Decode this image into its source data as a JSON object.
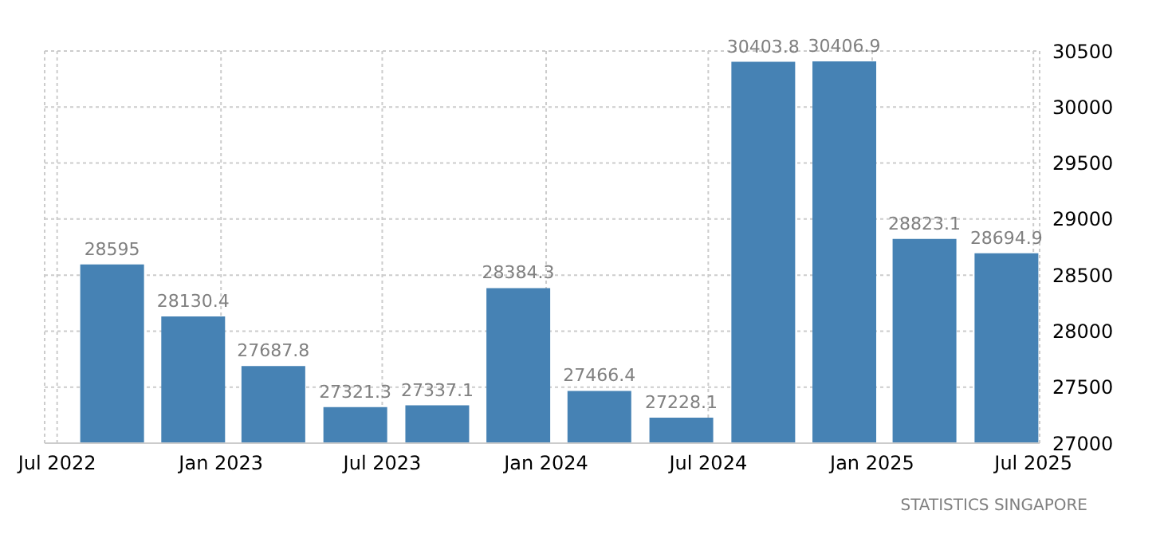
{
  "chart_data": {
    "type": "bar",
    "x": [
      "2022-09",
      "2022-12",
      "2023-03",
      "2023-06",
      "2023-09",
      "2023-12",
      "2024-03",
      "2024-06",
      "2024-09",
      "2024-12",
      "2025-03",
      "2025-06"
    ],
    "values": [
      28595,
      28130.4,
      27687.8,
      27321.3,
      27337.1,
      28384.3,
      27466.4,
      27228.1,
      30403.8,
      30406.9,
      28823.1,
      28694.9
    ],
    "color": "#4682b4",
    "data_labels": true,
    "xlim": [
      "2022-06-17",
      "2025-07-08"
    ],
    "xticks": [
      {
        "value": "2022-07",
        "label": "Jul 2022"
      },
      {
        "value": "2023-01",
        "label": "Jan 2023"
      },
      {
        "value": "2023-07",
        "label": "Jul 2023"
      },
      {
        "value": "2024-01",
        "label": "Jan 2024"
      },
      {
        "value": "2024-07",
        "label": "Jul 2024"
      },
      {
        "value": "2025-01",
        "label": "Jan 2025"
      },
      {
        "value": "2025-07",
        "label": "Jul 2025"
      }
    ],
    "ylim": [
      27000,
      30500
    ],
    "yticks": [
      27000,
      27500,
      28000,
      28500,
      29000,
      29500,
      30000,
      30500
    ],
    "grid": true,
    "annotations": [
      "STATISTICS SINGAPORE"
    ]
  }
}
